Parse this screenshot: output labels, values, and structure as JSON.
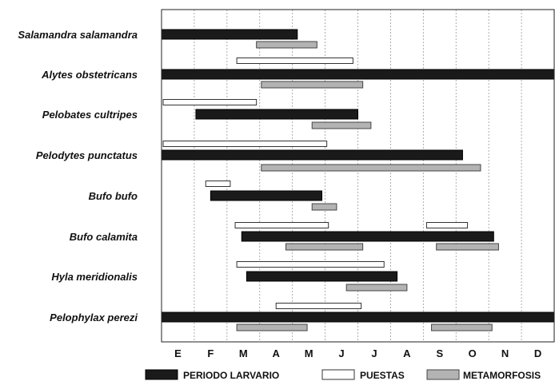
{
  "chart_data": {
    "type": "gantt",
    "months": [
      "E",
      "F",
      "M",
      "A",
      "M",
      "J",
      "J",
      "A",
      "S",
      "O",
      "N",
      "D"
    ],
    "x_range_months": [
      0,
      12
    ],
    "grid": "vertical-dashed",
    "legend_position": "bottom",
    "legend": [
      {
        "key": "larval",
        "label": "PERIODO LARVARIO",
        "color": "#1a1a1a"
      },
      {
        "key": "spawn",
        "label": "PUESTAS",
        "color": "#ffffff"
      },
      {
        "key": "meta",
        "label": "METAMORFOSIS",
        "color": "#b3b3b3"
      }
    ],
    "species": [
      {
        "name": "Salamandra salamandra",
        "bars": [
          {
            "type": "larval",
            "start": 0.0,
            "end": 4.15
          },
          {
            "type": "meta",
            "start": 2.9,
            "end": 4.75
          }
        ]
      },
      {
        "name": "Pelobates cultripes",
        "bars": [
          {
            "type": "spawn",
            "start": 0.05,
            "end": 2.9
          },
          {
            "type": "larval",
            "start": 1.05,
            "end": 6.0
          },
          {
            "type": "meta",
            "start": 4.6,
            "end": 6.4
          }
        ]
      },
      {
        "name": "Alytes obstetricans",
        "bars": [
          {
            "type": "spawn",
            "start": 2.3,
            "end": 5.85
          },
          {
            "type": "larval",
            "start": 0.0,
            "end": 12.0
          },
          {
            "type": "meta",
            "start": 3.05,
            "end": 6.15
          }
        ]
      },
      {
        "name": "Pelodytes punctatus",
        "bars": [
          {
            "type": "spawn",
            "start": 0.05,
            "end": 5.05
          },
          {
            "type": "larval",
            "start": 0.0,
            "end": 9.2
          },
          {
            "type": "meta",
            "start": 3.05,
            "end": 9.75
          }
        ]
      },
      {
        "name": "Bufo bufo",
        "bars": [
          {
            "type": "spawn",
            "start": 1.35,
            "end": 2.1
          },
          {
            "type": "larval",
            "start": 1.5,
            "end": 4.9
          },
          {
            "type": "meta",
            "start": 4.6,
            "end": 5.35
          }
        ]
      },
      {
        "name": "Bufo calamita",
        "bars": [
          {
            "type": "spawn",
            "start": 2.25,
            "end": 5.1
          },
          {
            "type": "spawn",
            "start": 8.1,
            "end": 9.35
          },
          {
            "type": "larval",
            "start": 2.45,
            "end": 10.15
          },
          {
            "type": "meta",
            "start": 3.8,
            "end": 6.15
          },
          {
            "type": "meta",
            "start": 8.4,
            "end": 10.3
          }
        ]
      },
      {
        "name": "Hyla meridionalis",
        "bars": [
          {
            "type": "spawn",
            "start": 2.3,
            "end": 6.8
          },
          {
            "type": "larval",
            "start": 2.6,
            "end": 7.2
          },
          {
            "type": "meta",
            "start": 5.65,
            "end": 7.5
          }
        ]
      },
      {
        "name": "Pelophylax perezi",
        "bars": [
          {
            "type": "spawn",
            "start": 3.5,
            "end": 6.1
          },
          {
            "type": "larval",
            "start": 0.0,
            "end": 12.0
          },
          {
            "type": "meta",
            "start": 2.3,
            "end": 4.45
          },
          {
            "type": "meta",
            "start": 8.25,
            "end": 10.1
          }
        ]
      }
    ]
  }
}
